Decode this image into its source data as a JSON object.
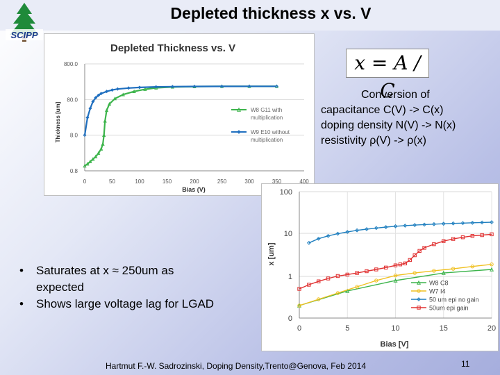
{
  "slide": {
    "title": "Depleted thickness x vs. V",
    "logo_text": "SCIPP",
    "formula": "x = A / C",
    "conversion_lines": [
      "Conversion of",
      "capacitance C(V) -> C(x)",
      "doping density N(V) -> N(x)",
      "resistivity ρ(V) -> ρ(x)"
    ],
    "bullets": [
      "Saturates at x ≈ 250um as",
      "expected",
      "Shows large voltage lag for LGAD"
    ],
    "bullet_symbol": "•",
    "footer": "Hartmut F.-W. Sadrozinski, Doping Density,Trento@Genova, Feb 2014",
    "page_number": "11"
  },
  "chart_data": [
    {
      "type": "line",
      "title": "Depleted Thickness vs. V",
      "xlabel": "Bias (V)",
      "ylabel": "Thickness [um]",
      "xlim": [
        0,
        400
      ],
      "yscale": "log",
      "ylim": [
        0.8,
        800
      ],
      "x_ticks": [
        0,
        50,
        100,
        150,
        200,
        250,
        300,
        350,
        400
      ],
      "x_tick_labels": [
        "0",
        "50",
        "100",
        "150",
        "200",
        "250",
        "300",
        "350",
        "400"
      ],
      "y_ticks": [
        0.8,
        8,
        80,
        800
      ],
      "y_tick_labels": [
        "0.8",
        "8.0",
        "80.0",
        "800.0"
      ],
      "grid": true,
      "legend_position": "right",
      "series": [
        {
          "name": "W8 G11 with multiplication",
          "legend_lines": [
            "W8 G11 with",
            "multiplication"
          ],
          "color": "#3cb44b",
          "marker": "triangle",
          "x": [
            0,
            5,
            10,
            15,
            20,
            25,
            30,
            33,
            35,
            37,
            40,
            45,
            55,
            70,
            90,
            110,
            130,
            160,
            200,
            250,
            300,
            350
          ],
          "y": [
            1.1,
            1.25,
            1.45,
            1.7,
            2.0,
            2.5,
            3.3,
            4.5,
            8,
            20,
            40,
            60,
            85,
            110,
            135,
            155,
            170,
            180,
            185,
            188,
            188,
            188
          ]
        },
        {
          "name": "W9 E10 without multiplication",
          "legend_lines": [
            "W9 E10 without",
            "multiplication"
          ],
          "color": "#1f6fbf",
          "marker": "diamond",
          "x": [
            0,
            5,
            10,
            15,
            20,
            25,
            30,
            40,
            50,
            60,
            80,
            100,
            130,
            160,
            200,
            250,
            300,
            350
          ],
          "y": [
            8,
            25,
            45,
            70,
            90,
            105,
            118,
            135,
            148,
            158,
            168,
            175,
            181,
            184,
            186,
            187,
            188,
            188
          ]
        }
      ]
    },
    {
      "type": "line",
      "xlabel": "Bias [V]",
      "ylabel": "x [um]",
      "xlim": [
        0,
        20
      ],
      "yscale": "log",
      "y_ticks": [
        0,
        1,
        10,
        100
      ],
      "y_tick_labels": [
        "0",
        "1",
        "10",
        "100"
      ],
      "x_ticks": [
        0,
        5,
        10,
        15,
        20
      ],
      "x_tick_labels": [
        "0",
        "5",
        "10",
        "15",
        "20"
      ],
      "grid": true,
      "legend_position": "bottom-right",
      "series": [
        {
          "name": "W8 C8",
          "color": "#3cb44b",
          "marker": "triangle",
          "x": [
            0,
            5,
            10,
            15,
            20
          ],
          "y": [
            0.3,
            0.65,
            0.9,
            1.2,
            1.45
          ]
        },
        {
          "name": "W7 I4",
          "color": "#f0c020",
          "marker": "circle",
          "x": [
            0,
            2,
            4,
            6,
            8,
            10,
            12,
            14,
            16,
            18,
            20
          ],
          "y": [
            0.3,
            0.45,
            0.6,
            0.75,
            0.9,
            1.05,
            1.2,
            1.35,
            1.5,
            1.7,
            1.9
          ]
        },
        {
          "name": "50 um epi no gain",
          "color": "#1f7fbf",
          "marker": "diamond",
          "x": [
            1,
            2,
            3,
            4,
            5,
            6,
            7,
            8,
            9,
            10,
            11,
            12,
            13,
            14,
            15,
            16,
            17,
            18,
            19,
            20
          ],
          "y": [
            6,
            7.5,
            8.7,
            9.8,
            10.8,
            11.8,
            12.6,
            13.4,
            14.1,
            14.8,
            15.3,
            15.8,
            16.2,
            16.6,
            17.0,
            17.3,
            17.6,
            17.9,
            18.2,
            18.5
          ]
        },
        {
          "name": "50um epi gain",
          "color": "#e03030",
          "marker": "square",
          "x": [
            0,
            1,
            2,
            3,
            4,
            5,
            6,
            7,
            8,
            9,
            10,
            10.5,
            11,
            11.5,
            12,
            12.5,
            13,
            14,
            15,
            16,
            17,
            18,
            19,
            20
          ],
          "y": [
            0.7,
            0.8,
            0.88,
            0.95,
            1.02,
            1.1,
            1.2,
            1.32,
            1.45,
            1.6,
            1.8,
            1.9,
            2.0,
            2.4,
            3.1,
            3.9,
            4.6,
            5.6,
            6.6,
            7.4,
            8.1,
            8.7,
            9.1,
            9.5
          ]
        }
      ]
    }
  ]
}
